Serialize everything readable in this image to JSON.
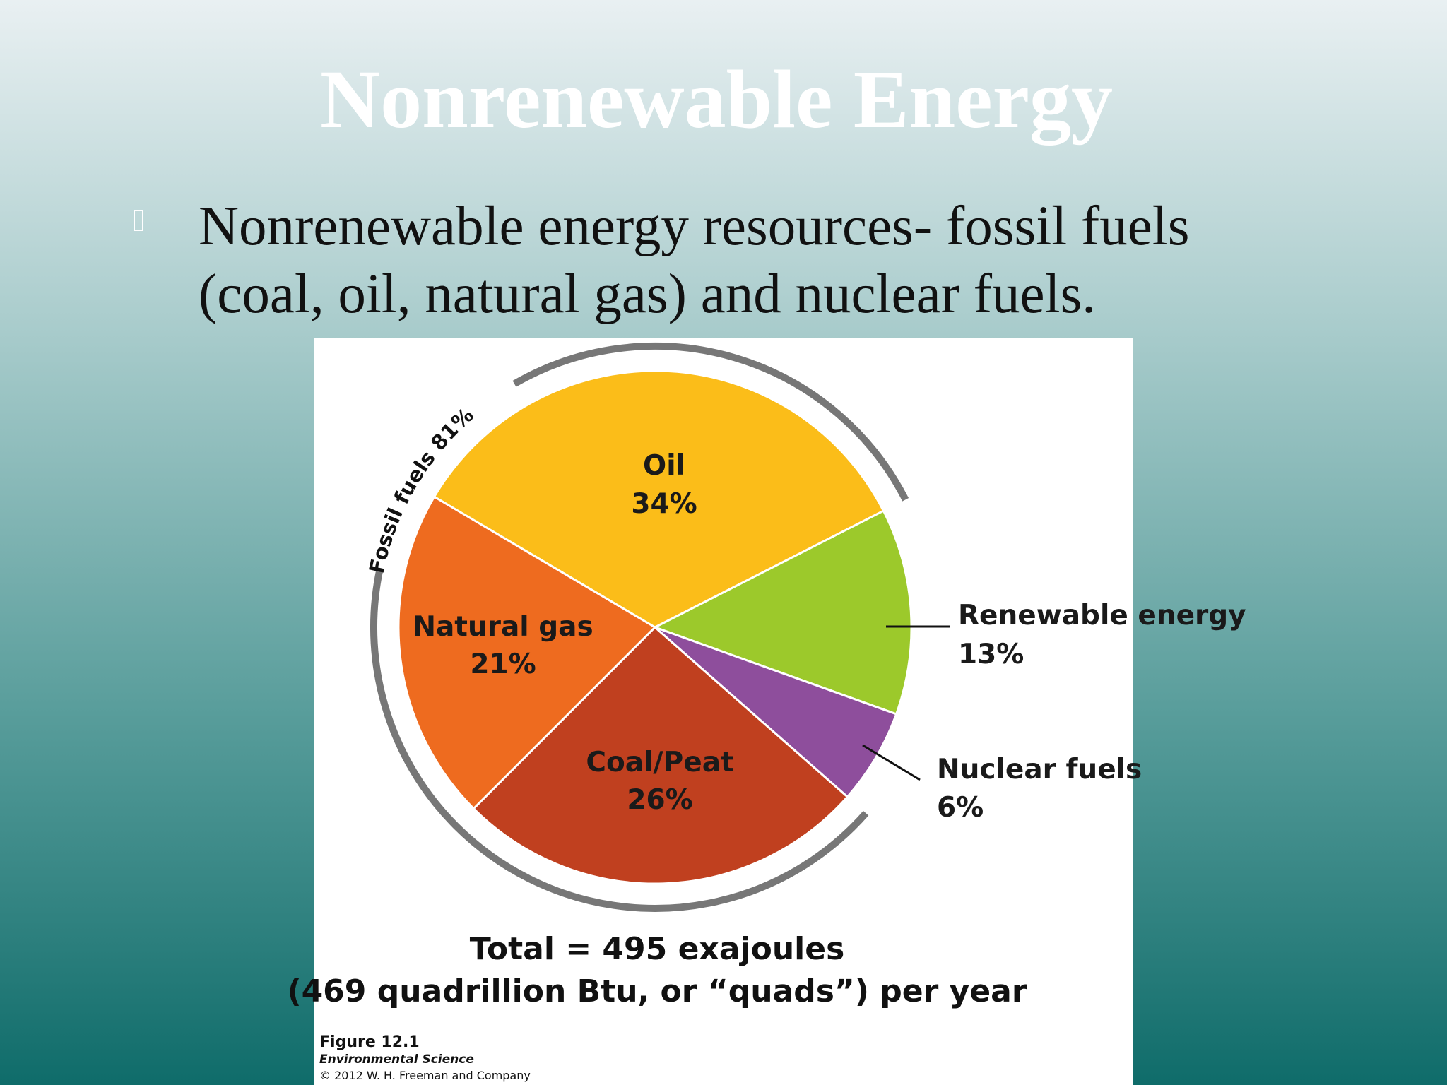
{
  "slide": {
    "title": "Nonrenewable Energy",
    "bullet": [
      "Nonrenewable energy resources- fossil fuels",
      "(coal, oil, natural gas) and nuclear fuels."
    ]
  },
  "chart_data": {
    "type": "pie",
    "categories": [
      "Oil",
      "Renewable energy",
      "Nuclear fuels",
      "Coal/Peat",
      "Natural gas"
    ],
    "values": [
      34,
      13,
      6,
      26,
      21
    ],
    "value_labels": [
      "34%",
      "13%",
      "6%",
      "26%",
      "21%"
    ],
    "colors": [
      "#fbbd19",
      "#9cc92b",
      "#8e4e9c",
      "#c0401f",
      "#ee6b1f"
    ],
    "group_label": "Fossil fuels 81%",
    "notes": [
      "Total = 495 exajoules",
      "(469 quadrillion Btu, or “quads”) per year"
    ],
    "source": [
      "Figure 12.1",
      "Environmental Science",
      "© 2012 W. H. Freeman and Company"
    ]
  }
}
